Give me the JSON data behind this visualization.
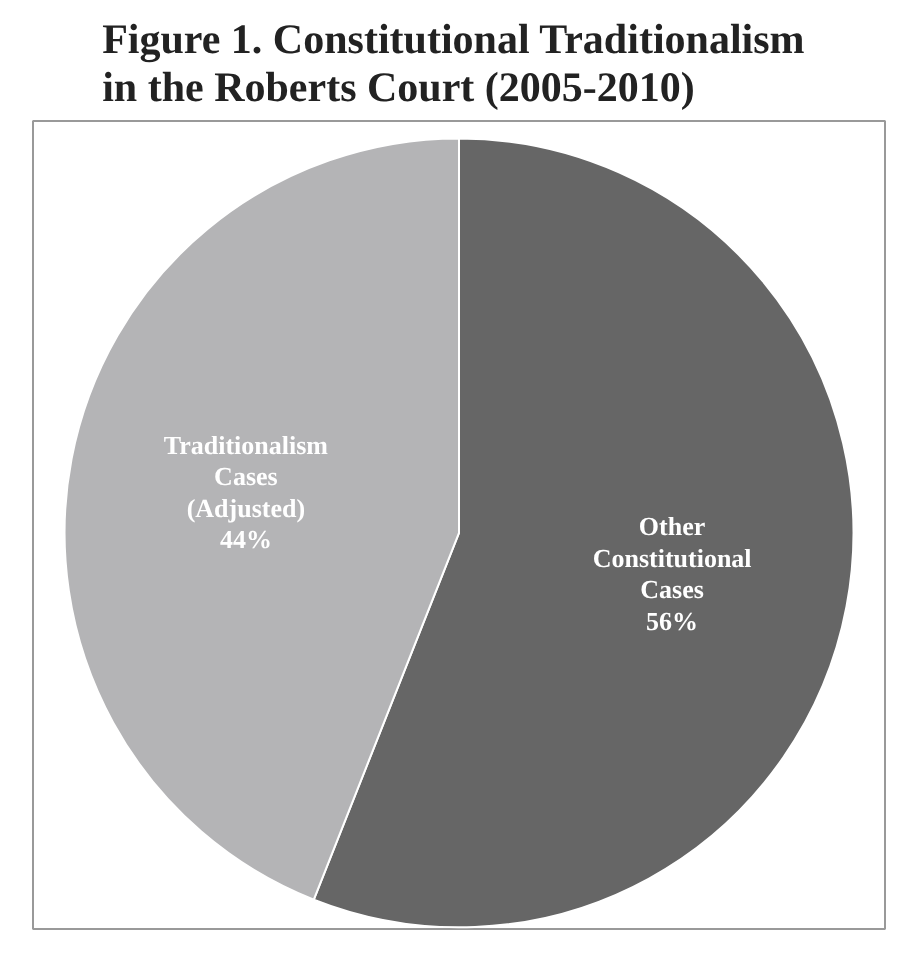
{
  "chart_data": {
    "type": "pie",
    "title": "Figure 1.  Constitutional Traditionalism\nin the Roberts Court (2005-2010)",
    "categories": [
      "Other\nConstitutional\nCases",
      "Traditionalism\nCases\n(Adjusted)"
    ],
    "values": [
      56,
      44
    ],
    "colors": [
      "#666666",
      "#b4b4b6"
    ],
    "value_labels": [
      "56%",
      "44%"
    ]
  }
}
